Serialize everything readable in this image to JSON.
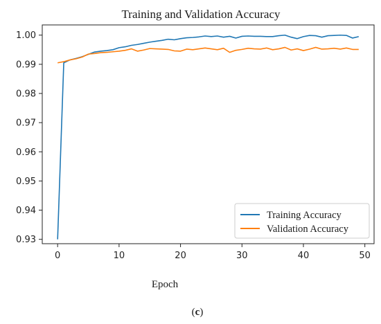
{
  "chart_data": {
    "type": "line",
    "title": "Training and Validation Accuracy",
    "xlabel": "Epoch",
    "ylabel": "",
    "xlim": [
      -2.5,
      51.5
    ],
    "ylim": [
      0.9285,
      1.0035
    ],
    "x_ticks": [
      "0",
      "10",
      "20",
      "30",
      "40",
      "50"
    ],
    "y_ticks": [
      "0.93",
      "0.94",
      "0.95",
      "0.96",
      "0.97",
      "0.98",
      "0.99",
      "1.00"
    ],
    "grid": false,
    "legend_position": "lower-right",
    "x": [
      0,
      1,
      2,
      3,
      4,
      5,
      6,
      7,
      8,
      9,
      10,
      11,
      12,
      13,
      14,
      15,
      16,
      17,
      18,
      19,
      20,
      21,
      22,
      23,
      24,
      25,
      26,
      27,
      28,
      29,
      30,
      31,
      32,
      33,
      34,
      35,
      36,
      37,
      38,
      39,
      40,
      41,
      42,
      43,
      44,
      45,
      46,
      47,
      48,
      49
    ],
    "series": [
      {
        "name": "Training Accuracy",
        "color": "#1f77b4",
        "values": [
          0.93,
          0.9905,
          0.9915,
          0.992,
          0.9926,
          0.9934,
          0.9942,
          0.9945,
          0.9947,
          0.995,
          0.9957,
          0.996,
          0.9965,
          0.9968,
          0.9972,
          0.9976,
          0.9979,
          0.9982,
          0.9986,
          0.9984,
          0.9988,
          0.9991,
          0.9992,
          0.9994,
          0.9997,
          0.9995,
          0.9997,
          0.9993,
          0.9996,
          0.999,
          0.9996,
          0.9997,
          0.9996,
          0.9996,
          0.9995,
          0.9995,
          0.9998,
          1.0,
          0.9993,
          0.9988,
          0.9995,
          0.9999,
          0.9998,
          0.9993,
          0.9998,
          0.9999,
          1.0,
          0.9999,
          0.999,
          0.9995
        ]
      },
      {
        "name": "Validation Accuracy",
        "color": "#ff7f0e",
        "values": [
          0.9905,
          0.9909,
          0.9915,
          0.9919,
          0.9925,
          0.9935,
          0.9937,
          0.994,
          0.9941,
          0.9943,
          0.9945,
          0.9948,
          0.9953,
          0.9945,
          0.9949,
          0.9954,
          0.9953,
          0.9952,
          0.9951,
          0.9946,
          0.9945,
          0.9952,
          0.995,
          0.9953,
          0.9956,
          0.9953,
          0.995,
          0.9955,
          0.9941,
          0.9948,
          0.9951,
          0.9955,
          0.9953,
          0.9952,
          0.9956,
          0.995,
          0.9953,
          0.9958,
          0.9949,
          0.9953,
          0.9947,
          0.9952,
          0.9958,
          0.9952,
          0.9953,
          0.9955,
          0.9952,
          0.9956,
          0.9951,
          0.9951
        ]
      }
    ]
  },
  "caption": {
    "open": "(",
    "letter": "c",
    "close": ")"
  }
}
